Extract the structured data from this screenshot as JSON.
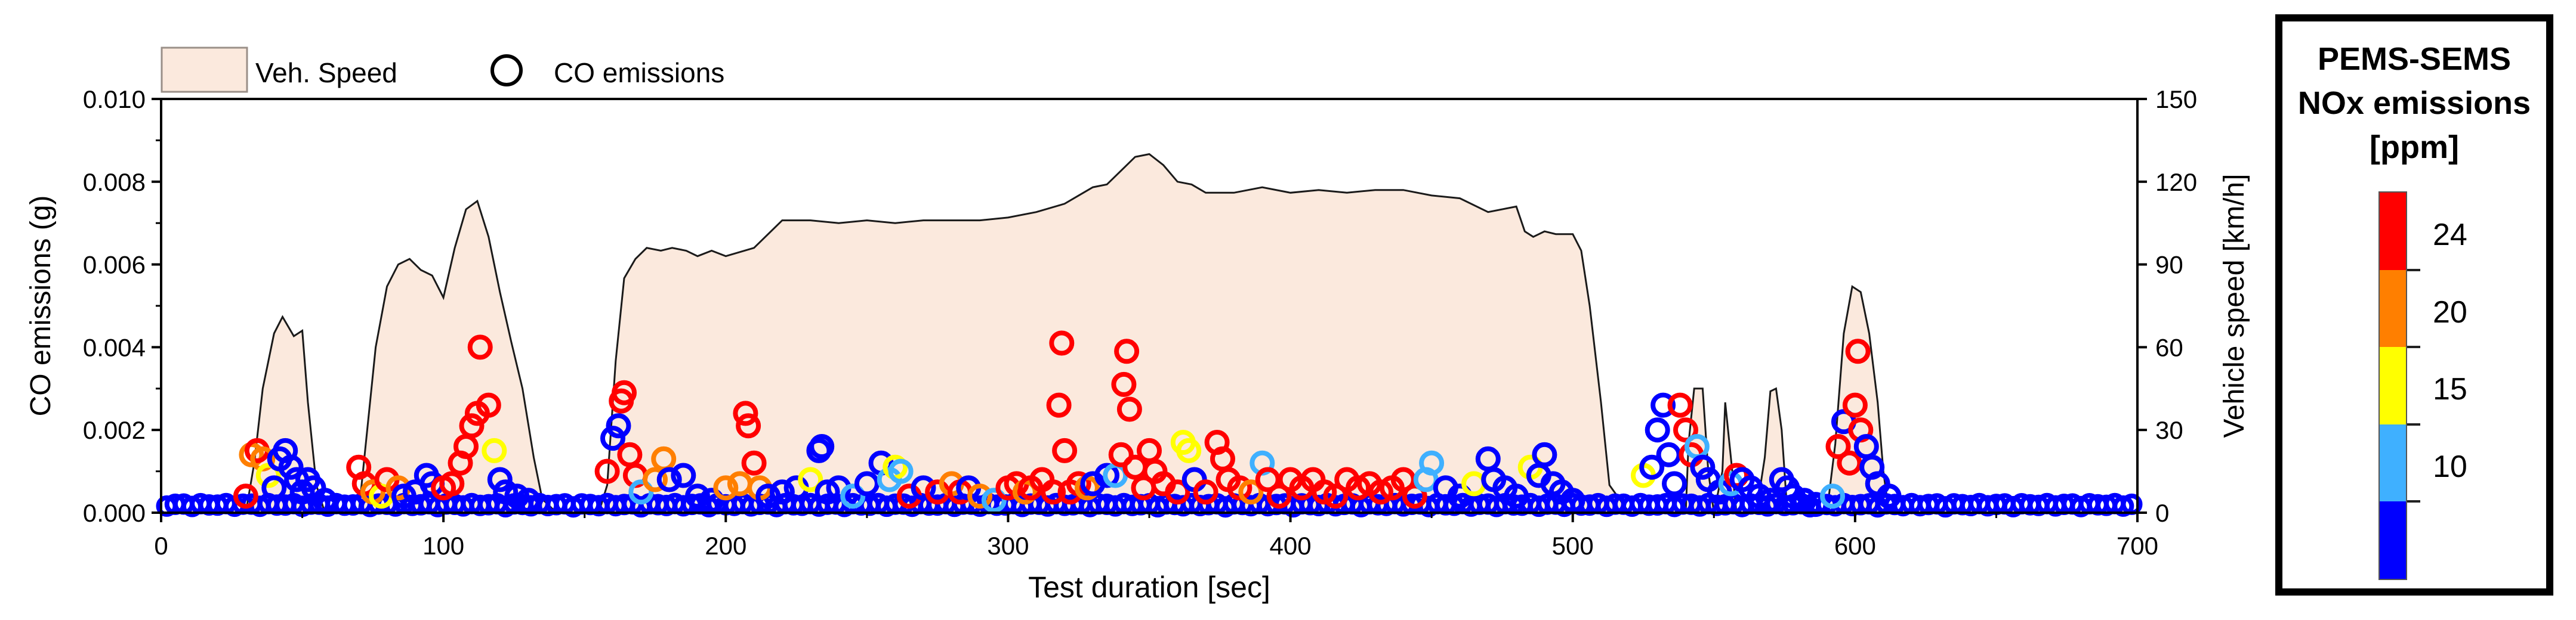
{
  "chart_data": {
    "type": "scatter",
    "xlabel": "Test duration [sec]",
    "ylabel": "CO emissions (g)",
    "y2label": "Vehicle speed [km/h]",
    "xlim": [
      0,
      700
    ],
    "ylim": [
      0,
      0.01
    ],
    "y2lim": [
      0,
      150
    ],
    "xticks": [
      "0",
      "100",
      "200",
      "300",
      "400",
      "500",
      "600",
      "700"
    ],
    "yticks": [
      "0.000",
      "0.002",
      "0.004",
      "0.006",
      "0.008",
      "0.010"
    ],
    "y2ticks": [
      "0",
      "30",
      "60",
      "90",
      "120",
      "150"
    ],
    "grid": false,
    "legend": {
      "placement": "top-left",
      "entries": [
        {
          "label": "Veh. Speed",
          "kind": "area",
          "color": "#fbe9dd"
        },
        {
          "label": "CO emissions",
          "kind": "marker",
          "color": "#000000"
        }
      ]
    },
    "colorbar": {
      "title": [
        "PEMS-SEMS",
        "NOx emissions",
        "[ppm]"
      ],
      "levels": [
        10,
        15,
        20,
        24
      ],
      "tick_labels": [
        "10",
        "15",
        "20",
        "24"
      ],
      "colors": [
        "#0000ff",
        "#3fb0ff",
        "#ffff00",
        "#ff7f00",
        "#ff0000"
      ],
      "placement": "right"
    },
    "speed_series": {
      "name": "Veh. Speed",
      "x": [
        0,
        30,
        33,
        36,
        40,
        43,
        47,
        50,
        52,
        55,
        58,
        70,
        73,
        76,
        80,
        84,
        88,
        92,
        96,
        100,
        104,
        108,
        112,
        116,
        120,
        124,
        128,
        132,
        135,
        140,
        155,
        158,
        161,
        164,
        168,
        172,
        177,
        181,
        186,
        190,
        195,
        200,
        210,
        220,
        230,
        240,
        250,
        260,
        270,
        280,
        290,
        300,
        310,
        320,
        325,
        330,
        335,
        340,
        345,
        350,
        355,
        360,
        365,
        370,
        380,
        390,
        400,
        410,
        420,
        430,
        440,
        450,
        460,
        470,
        480,
        483,
        486,
        490,
        494,
        500,
        503,
        506,
        510,
        513,
        520,
        538,
        540,
        541,
        543,
        546,
        548,
        550,
        553,
        554,
        556,
        558,
        560,
        565,
        568,
        570,
        572,
        574,
        576,
        578,
        580,
        590,
        593,
        596,
        599,
        602,
        605,
        608,
        610,
        612,
        620,
        700
      ],
      "values": [
        0,
        0,
        18,
        45,
        65,
        71,
        64,
        66,
        40,
        10,
        0,
        0,
        30,
        60,
        82,
        90,
        92,
        88,
        86,
        78,
        96,
        110,
        113,
        100,
        80,
        62,
        45,
        20,
        5,
        0,
        0,
        10,
        55,
        85,
        92,
        96,
        95,
        96,
        95,
        93,
        95,
        93,
        96,
        106,
        106,
        105,
        106,
        105,
        106,
        106,
        106,
        107,
        109,
        112,
        115,
        118,
        119,
        124,
        129,
        130,
        126,
        120,
        119,
        116,
        116,
        118,
        116,
        117,
        116,
        117,
        117,
        115,
        114,
        109,
        111,
        102,
        100,
        102,
        101,
        101,
        95,
        75,
        40,
        10,
        0,
        0,
        0,
        25,
        45,
        45,
        15,
        0,
        15,
        40,
        20,
        0,
        0,
        0,
        20,
        44,
        45,
        30,
        0,
        0,
        0,
        0,
        25,
        65,
        82,
        80,
        65,
        40,
        15,
        0,
        0,
        0
      ]
    },
    "co_series": {
      "name": "CO emissions",
      "points": [
        [
          30,
          0.0004,
          5
        ],
        [
          32,
          0.0014,
          4
        ],
        [
          34,
          0.0015,
          5
        ],
        [
          36,
          0.0013,
          4
        ],
        [
          38,
          0.0009,
          3
        ],
        [
          40,
          0.0006,
          1
        ],
        [
          42,
          0.0013,
          1
        ],
        [
          44,
          0.0015,
          1
        ],
        [
          46,
          0.0011,
          1
        ],
        [
          48,
          0.0008,
          1
        ],
        [
          50,
          0.0005,
          1
        ],
        [
          52,
          0.0008,
          1
        ],
        [
          54,
          0.0006,
          1
        ],
        [
          58,
          0.0003,
          1
        ],
        [
          70,
          0.0011,
          5
        ],
        [
          72,
          0.0007,
          5
        ],
        [
          75,
          0.0005,
          4
        ],
        [
          78,
          0.0004,
          3
        ],
        [
          80,
          0.0008,
          5
        ],
        [
          84,
          0.0006,
          4
        ],
        [
          86,
          0.0004,
          1
        ],
        [
          90,
          0.0005,
          1
        ],
        [
          94,
          0.0009,
          1
        ],
        [
          96,
          0.0007,
          1
        ],
        [
          100,
          0.0006,
          5
        ],
        [
          103,
          0.0007,
          5
        ],
        [
          106,
          0.0012,
          5
        ],
        [
          108,
          0.0016,
          5
        ],
        [
          110,
          0.0021,
          5
        ],
        [
          112,
          0.0024,
          5
        ],
        [
          113,
          0.004,
          5
        ],
        [
          116,
          0.0026,
          5
        ],
        [
          118,
          0.0015,
          3
        ],
        [
          120,
          0.0008,
          1
        ],
        [
          122,
          0.0005,
          1
        ],
        [
          126,
          0.0004,
          1
        ],
        [
          130,
          0.0003,
          1
        ],
        [
          158,
          0.001,
          5
        ],
        [
          160,
          0.0018,
          1
        ],
        [
          162,
          0.0021,
          1
        ],
        [
          163,
          0.0027,
          5
        ],
        [
          164,
          0.0029,
          5
        ],
        [
          166,
          0.0014,
          5
        ],
        [
          168,
          0.0009,
          5
        ],
        [
          170,
          0.0005,
          2
        ],
        [
          175,
          0.0008,
          4
        ],
        [
          178,
          0.0013,
          4
        ],
        [
          180,
          0.0008,
          1
        ],
        [
          185,
          0.0009,
          1
        ],
        [
          190,
          0.0004,
          1
        ],
        [
          195,
          0.0003,
          1
        ],
        [
          200,
          0.0006,
          4
        ],
        [
          205,
          0.0007,
          4
        ],
        [
          207,
          0.0024,
          5
        ],
        [
          208,
          0.0021,
          5
        ],
        [
          210,
          0.0012,
          5
        ],
        [
          212,
          0.0006,
          4
        ],
        [
          215,
          0.0004,
          1
        ],
        [
          220,
          0.0005,
          1
        ],
        [
          225,
          0.0006,
          1
        ],
        [
          230,
          0.0008,
          3
        ],
        [
          233,
          0.0015,
          1
        ],
        [
          234,
          0.0016,
          1
        ],
        [
          236,
          0.0005,
          1
        ],
        [
          240,
          0.0006,
          1
        ],
        [
          245,
          0.0004,
          2
        ],
        [
          250,
          0.0007,
          1
        ],
        [
          255,
          0.0012,
          1
        ],
        [
          258,
          0.0008,
          2
        ],
        [
          260,
          0.0011,
          3
        ],
        [
          262,
          0.001,
          2
        ],
        [
          265,
          0.0004,
          5
        ],
        [
          270,
          0.0006,
          1
        ],
        [
          275,
          0.0005,
          5
        ],
        [
          280,
          0.0007,
          4
        ],
        [
          283,
          0.0005,
          5
        ],
        [
          286,
          0.0006,
          1
        ],
        [
          290,
          0.0004,
          4
        ],
        [
          295,
          0.0003,
          2
        ],
        [
          300,
          0.0006,
          5
        ],
        [
          303,
          0.0007,
          5
        ],
        [
          306,
          0.0005,
          4
        ],
        [
          308,
          0.0006,
          5
        ],
        [
          312,
          0.0008,
          5
        ],
        [
          316,
          0.0005,
          5
        ],
        [
          318,
          0.0026,
          5
        ],
        [
          319,
          0.0041,
          5
        ],
        [
          320,
          0.0015,
          5
        ],
        [
          322,
          0.0005,
          5
        ],
        [
          325,
          0.0007,
          5
        ],
        [
          328,
          0.0006,
          4
        ],
        [
          330,
          0.0007,
          1
        ],
        [
          335,
          0.0009,
          1
        ],
        [
          338,
          0.0009,
          2
        ],
        [
          340,
          0.0014,
          5
        ],
        [
          341,
          0.0031,
          5
        ],
        [
          342,
          0.0039,
          5
        ],
        [
          343,
          0.0025,
          5
        ],
        [
          345,
          0.0011,
          5
        ],
        [
          348,
          0.0006,
          5
        ],
        [
          350,
          0.0015,
          5
        ],
        [
          352,
          0.001,
          5
        ],
        [
          355,
          0.0007,
          5
        ],
        [
          360,
          0.0005,
          5
        ],
        [
          362,
          0.0017,
          3
        ],
        [
          364,
          0.0015,
          3
        ],
        [
          366,
          0.0008,
          1
        ],
        [
          370,
          0.0005,
          5
        ],
        [
          374,
          0.0017,
          5
        ],
        [
          376,
          0.0013,
          5
        ],
        [
          378,
          0.0008,
          5
        ],
        [
          382,
          0.0006,
          5
        ],
        [
          386,
          0.0005,
          4
        ],
        [
          390,
          0.0012,
          2
        ],
        [
          392,
          0.0008,
          5
        ],
        [
          396,
          0.0004,
          5
        ],
        [
          400,
          0.0008,
          5
        ],
        [
          404,
          0.0006,
          5
        ],
        [
          408,
          0.0008,
          5
        ],
        [
          412,
          0.0005,
          5
        ],
        [
          416,
          0.0004,
          5
        ],
        [
          420,
          0.0008,
          5
        ],
        [
          424,
          0.0006,
          5
        ],
        [
          428,
          0.0007,
          5
        ],
        [
          432,
          0.0005,
          5
        ],
        [
          436,
          0.0006,
          5
        ],
        [
          440,
          0.0008,
          5
        ],
        [
          444,
          0.0004,
          5
        ],
        [
          448,
          0.0008,
          2
        ],
        [
          450,
          0.0012,
          2
        ],
        [
          455,
          0.0006,
          1
        ],
        [
          460,
          0.0004,
          1
        ],
        [
          465,
          0.0007,
          3
        ],
        [
          470,
          0.0013,
          1
        ],
        [
          472,
          0.0008,
          1
        ],
        [
          476,
          0.0006,
          1
        ],
        [
          480,
          0.0004,
          1
        ],
        [
          485,
          0.0011,
          3
        ],
        [
          488,
          0.0009,
          1
        ],
        [
          490,
          0.0014,
          1
        ],
        [
          493,
          0.0007,
          1
        ],
        [
          496,
          0.0005,
          1
        ],
        [
          500,
          0.0003,
          1
        ],
        [
          525,
          0.0009,
          3
        ],
        [
          528,
          0.0011,
          1
        ],
        [
          530,
          0.002,
          1
        ],
        [
          532,
          0.0026,
          1
        ],
        [
          534,
          0.0014,
          1
        ],
        [
          536,
          0.0007,
          1
        ],
        [
          538,
          0.0026,
          5
        ],
        [
          540,
          0.002,
          5
        ],
        [
          542,
          0.0014,
          5
        ],
        [
          544,
          0.0016,
          2
        ],
        [
          546,
          0.0011,
          1
        ],
        [
          548,
          0.0008,
          1
        ],
        [
          552,
          0.0005,
          1
        ],
        [
          556,
          0.0007,
          2
        ],
        [
          558,
          0.0009,
          5
        ],
        [
          560,
          0.0008,
          1
        ],
        [
          563,
          0.0006,
          1
        ],
        [
          566,
          0.0004,
          1
        ],
        [
          570,
          0.0003,
          1
        ],
        [
          574,
          0.0008,
          1
        ],
        [
          576,
          0.0006,
          1
        ],
        [
          578,
          0.0004,
          1
        ],
        [
          582,
          0.0003,
          1
        ],
        [
          586,
          0.0002,
          1
        ],
        [
          592,
          0.0004,
          2
        ],
        [
          594,
          0.0016,
          5
        ],
        [
          596,
          0.0022,
          1
        ],
        [
          598,
          0.0012,
          5
        ],
        [
          600,
          0.0026,
          5
        ],
        [
          601,
          0.0039,
          5
        ],
        [
          602,
          0.002,
          5
        ],
        [
          604,
          0.0016,
          1
        ],
        [
          606,
          0.0011,
          1
        ],
        [
          608,
          0.0007,
          1
        ],
        [
          612,
          0.0004,
          1
        ]
      ]
    },
    "baseline_note": "dense blue markers near 0.0002 g over the full test"
  }
}
